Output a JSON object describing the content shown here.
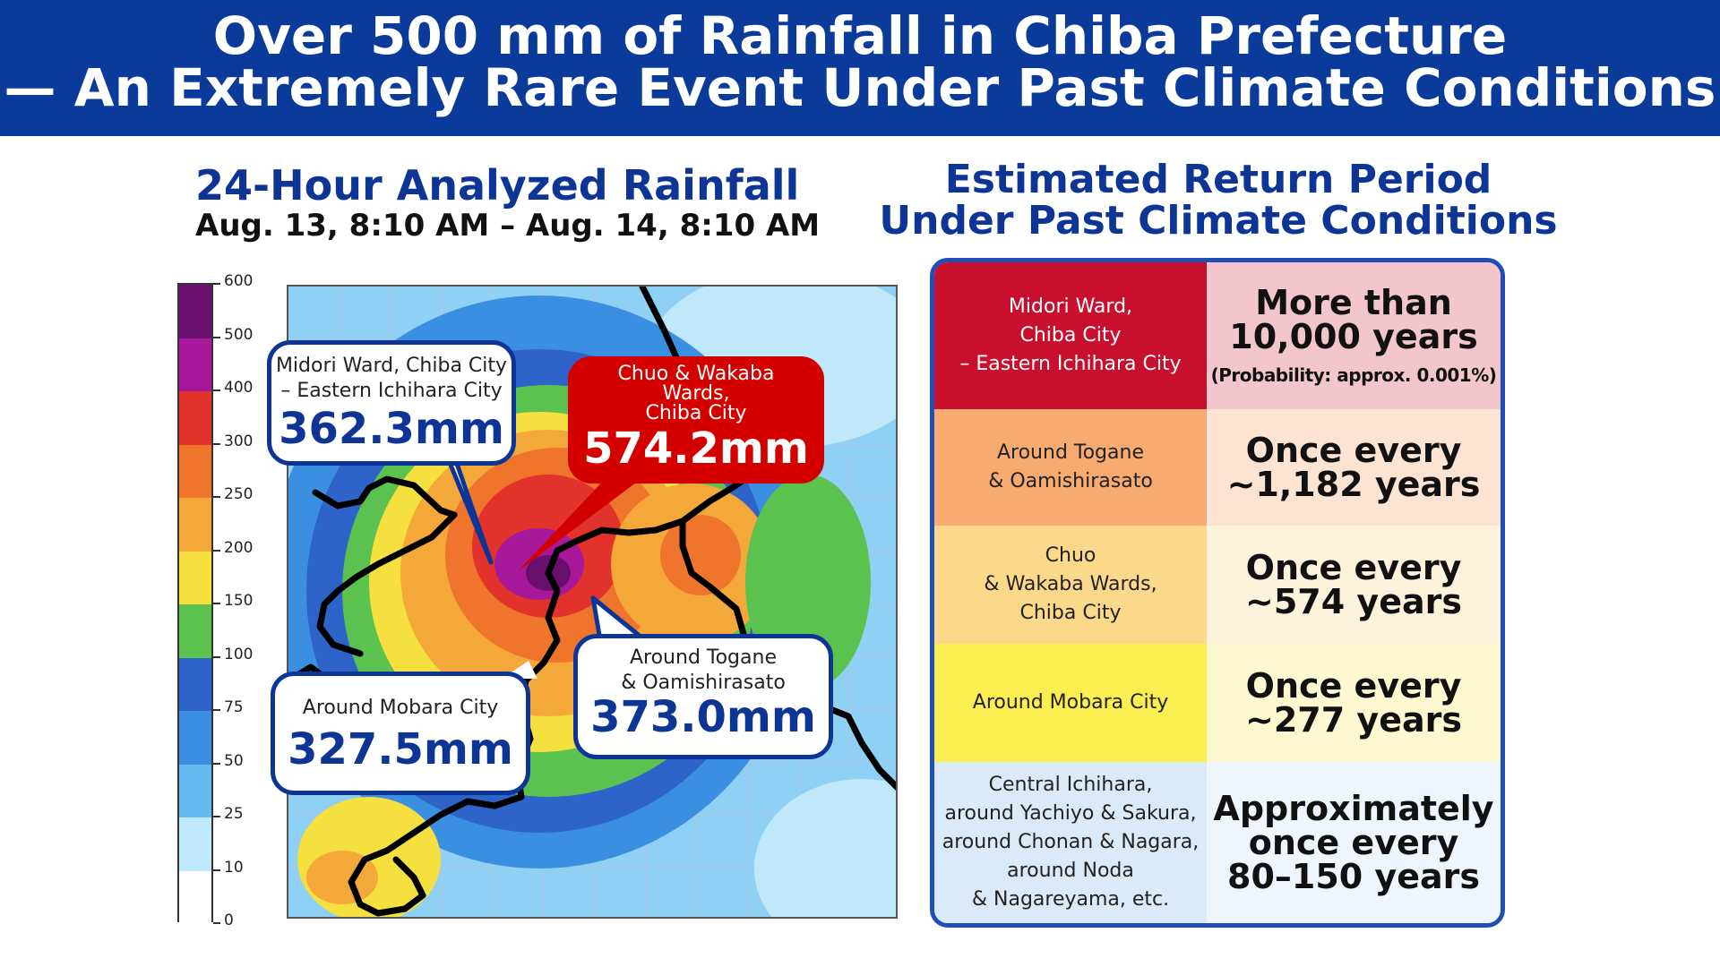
{
  "header": {
    "line1": "Over 500 mm of Rainfall in Chiba Prefecture",
    "line2": "— An Extremely Rare Event Under Past Climate Conditions"
  },
  "left_panel": {
    "title": "24-Hour Analyzed Rainfall",
    "subtitle": "Aug. 13, 8:10 AM – Aug. 14, 8:10 AM"
  },
  "colorbar": {
    "labels": [
      "600",
      "500",
      "400",
      "300",
      "250",
      "200",
      "150",
      "100",
      "75",
      "50",
      "25",
      "10",
      "0"
    ],
    "colors": [
      "#6b0f6e",
      "#a8189a",
      "#e2322c",
      "#f0752c",
      "#f5a83a",
      "#f5e040",
      "#5cc24f",
      "#2e63c9",
      "#3b8fe0",
      "#66bcf0",
      "#bfe8fb",
      "#ffffff"
    ]
  },
  "callouts": {
    "midori": {
      "line1": "Midori Ward, Chiba City",
      "line2": "– Eastern Ichihara City",
      "value": "362.3mm"
    },
    "chuo": {
      "line1": "Chuo & Wakaba",
      "line2": "Wards,",
      "line3": "Chiba City",
      "value": "574.2mm"
    },
    "mobara": {
      "line1": "Around Mobara City",
      "value": "327.5mm"
    },
    "togane": {
      "line1": "Around Togane",
      "line2": "& Oamishirasato",
      "value": "373.0mm"
    }
  },
  "right_panel": {
    "title_line1": "Estimated Return Period",
    "title_line2": "Under Past Climate Conditions"
  },
  "return_table": [
    {
      "region": [
        "Midori Ward,",
        "Chiba City",
        "– Eastern Ichihara City"
      ],
      "period": [
        "More than",
        "10,000 years"
      ],
      "note": "(Probability: approx. 0.001%)",
      "left_color": "#c8102e",
      "right_color": "#f2c6cc",
      "left_text_color": "#ffffff"
    },
    {
      "region": [
        "Around Togane",
        "& Oamishirasato"
      ],
      "period": [
        "Once every",
        "~1,182 years"
      ],
      "note": "",
      "left_color": "#f7ab70",
      "right_color": "#fde3d2",
      "left_text_color": "#222222"
    },
    {
      "region": [
        "Chuo",
        "& Wakaba Wards,",
        "Chiba City"
      ],
      "period": [
        "Once every",
        "~574 years"
      ],
      "note": "",
      "left_color": "#fbd88a",
      "right_color": "#fdf2db",
      "left_text_color": "#222222"
    },
    {
      "region": [
        "Around Mobara City"
      ],
      "period": [
        "Once every",
        "~277 years"
      ],
      "note": "",
      "left_color": "#fbee50",
      "right_color": "#fdf8d0",
      "left_text_color": "#222222"
    },
    {
      "region": [
        "Central Ichihara,",
        "around Yachiyo & Sakura,",
        "around Chonan & Nagara,",
        "around Noda",
        "& Nagareyama, etc."
      ],
      "period": [
        "Approximately",
        "once every",
        "80–150 years"
      ],
      "note": "",
      "left_color": "#dbeaf8",
      "right_color": "#eef5fc",
      "left_text_color": "#222222"
    }
  ]
}
